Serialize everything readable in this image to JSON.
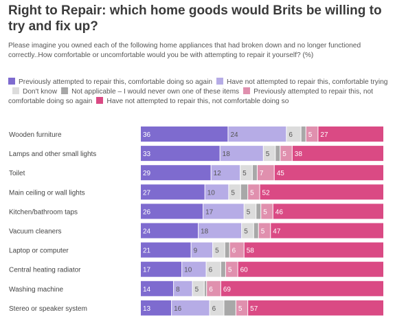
{
  "title": "Right to Repair: which home goods would Brits be willing to try and fix up?",
  "subtitle": "Please imagine you owned each of the following home appliances that had broken down and no longer functioned correctly..How comfortable or uncomfortable would you be with attempting to repair it yourself? (%)",
  "chart_data": {
    "type": "bar",
    "orientation": "horizontal",
    "stacked": true,
    "categories": [
      "Wooden furniture",
      "Lamps and other small lights",
      "Toilet",
      "Main ceiling or wall lights",
      "Kitchen/bathroom taps",
      "Vacuum cleaners",
      "Laptop or computer",
      "Central heating radiator",
      "Washing machine",
      "Stereo or speaker system"
    ],
    "series": [
      {
        "name": "Previously attempted to repair this, comfortable doing so again",
        "color": "#7e6bcf",
        "label_color": "#ffffff",
        "values": [
          36,
          33,
          29,
          27,
          26,
          24,
          21,
          17,
          14,
          13
        ]
      },
      {
        "name": "Have not attempted to repair this, comfortable trying",
        "color": "#b6ace6",
        "label_color": "#555555",
        "values": [
          24,
          18,
          12,
          10,
          17,
          18,
          9,
          10,
          8,
          16
        ]
      },
      {
        "name": "Don't know",
        "color": "#dcdcdc",
        "label_color": "#555555",
        "values": [
          6,
          5,
          5,
          5,
          5,
          5,
          5,
          6,
          5,
          6
        ]
      },
      {
        "name": "Not applicable – I would never own one of these items",
        "color": "#a8a8a8",
        "label_color": "#555555",
        "values": [
          2,
          2,
          2,
          3,
          2,
          2,
          2,
          2,
          1,
          5
        ]
      },
      {
        "name": "Previously attempted to repair this, not comfortable doing so again",
        "color": "#e090ae",
        "label_color": "#ffffff",
        "values": [
          5,
          5,
          7,
          5,
          5,
          5,
          6,
          5,
          6,
          5
        ]
      },
      {
        "name": "Have not attempted to repair this, not comfortable doing so",
        "color": "#da4a84",
        "label_color": "#ffffff",
        "values": [
          27,
          38,
          45,
          52,
          46,
          47,
          58,
          60,
          69,
          57
        ]
      }
    ],
    "xlim": [
      0,
      100
    ],
    "legend_position": "top"
  }
}
